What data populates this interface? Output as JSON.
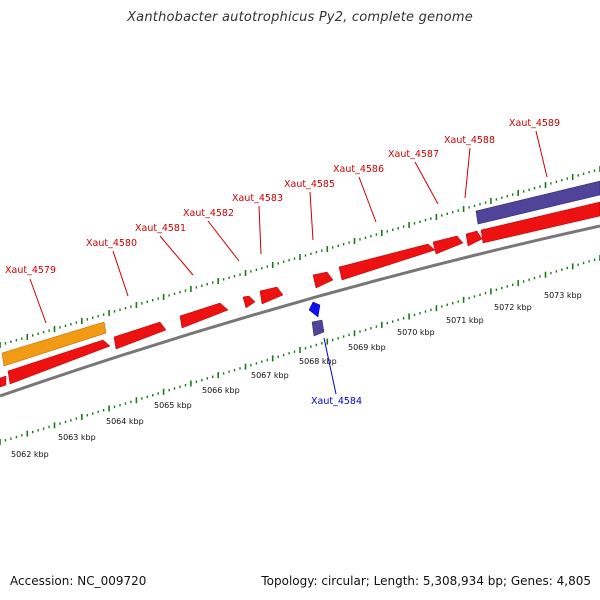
{
  "header": {
    "title": "Xanthobacter autotrophicus Py2, complete genome"
  },
  "footer": {
    "accession": "Accession: NC_009720",
    "summary": "Topology: circular; Length: 5,308,934 bp; Genes: 4,805"
  },
  "colors": {
    "forward_gene": "#ee1111",
    "reverse_gene": "#1111ee",
    "highlight_gene_orange": "#f39a14",
    "highlight_gene_purple": "#4f4499",
    "backbone": "#777777",
    "tick": "#1a7a1a",
    "forward_label": "#cc0000",
    "reverse_label": "#0000cc"
  },
  "ruler": {
    "labels": [
      "5062 kbp",
      "5063 kbp",
      "5064 kbp",
      "5065 kbp",
      "5066 kbp",
      "5067 kbp",
      "5068 kbp",
      "5069 kbp",
      "5070 kbp",
      "5071 kbp",
      "5072 kbp",
      "5073 kbp"
    ]
  },
  "genes": {
    "forward_labels": [
      "Xaut_4579",
      "Xaut_4580",
      "Xaut_4581",
      "Xaut_4582",
      "Xaut_4583",
      "Xaut_4585",
      "Xaut_4586",
      "Xaut_4587",
      "Xaut_4588",
      "Xaut_4589"
    ],
    "reverse_labels": [
      "Xaut_4584"
    ]
  }
}
